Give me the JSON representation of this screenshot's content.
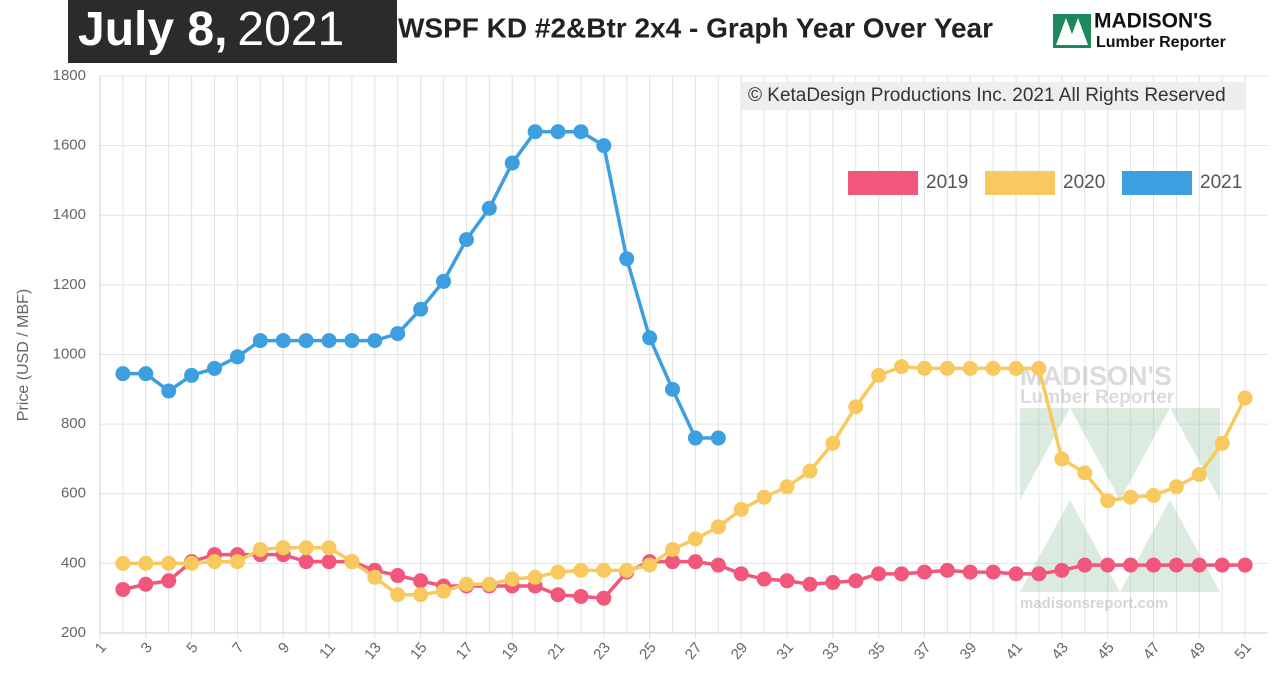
{
  "chart_data": {
    "type": "line",
    "date_label": "July 8,",
    "date_year": "2021",
    "title": "WSPF KD #2&Btr 2x4 - Graph Year Over Year",
    "logo": {
      "line1": "MADISON'S",
      "line2": "Lumber Reporter"
    },
    "copyright": "© KetaDesign Productions Inc. 2021 All Rights Reserved",
    "watermark": {
      "line1": "MADISON'S",
      "line2": "Lumber Reporter",
      "url": "madisonsreport.com"
    },
    "y_label": "Price (USD / MBF)",
    "x": [
      2,
      3,
      4,
      5,
      6,
      7,
      8,
      9,
      10,
      11,
      12,
      13,
      14,
      15,
      16,
      17,
      18,
      19,
      20,
      21,
      22,
      23,
      24,
      25,
      26,
      27,
      28,
      29,
      30,
      31,
      32,
      33,
      34,
      35,
      36,
      37,
      38,
      39,
      40,
      41,
      42,
      43,
      44,
      45,
      46,
      47,
      48,
      49,
      50,
      51
    ],
    "series": [
      {
        "name": "2019",
        "color": "#f0577b",
        "values": [
          325,
          340,
          350,
          405,
          425,
          425,
          425,
          425,
          405,
          405,
          405,
          380,
          365,
          350,
          335,
          335,
          335,
          335,
          335,
          310,
          305,
          300,
          375,
          405,
          405,
          405,
          395,
          370,
          355,
          350,
          340,
          345,
          350,
          370,
          370,
          375,
          380,
          375,
          375,
          370,
          370,
          380,
          395,
          395,
          395,
          395,
          395,
          395,
          395,
          395
        ]
      },
      {
        "name": "2020",
        "color": "#f8c95e",
        "values": [
          400,
          400,
          400,
          400,
          405,
          405,
          440,
          445,
          445,
          445,
          405,
          360,
          310,
          310,
          320,
          340,
          340,
          355,
          360,
          375,
          380,
          380,
          380,
          395,
          440,
          470,
          505,
          555,
          590,
          620,
          665,
          745,
          850,
          940,
          965,
          960,
          960,
          960,
          960,
          960,
          960,
          700,
          660,
          580,
          590,
          595,
          620,
          655,
          745,
          875
        ]
      },
      {
        "name": "2021",
        "color": "#3d9fe0",
        "values": [
          945,
          945,
          895,
          940,
          960,
          993,
          1040,
          1040,
          1040,
          1040,
          1040,
          1040,
          1060,
          1130,
          1210,
          1330,
          1420,
          1550,
          1640,
          1640,
          1640,
          1600,
          1275,
          1048,
          900,
          760,
          760,
          null,
          null,
          null,
          null,
          null,
          null,
          null,
          null,
          null,
          null,
          null,
          null,
          null,
          null,
          null,
          null,
          null,
          null,
          null,
          null,
          null,
          null,
          null
        ]
      }
    ],
    "xlim": [
      1,
      52
    ],
    "xticks": [
      1,
      3,
      5,
      7,
      9,
      11,
      13,
      15,
      17,
      19,
      21,
      23,
      25,
      27,
      29,
      31,
      33,
      35,
      37,
      39,
      41,
      43,
      45,
      47,
      49,
      51
    ],
    "ylim": [
      200,
      1800
    ],
    "yticks": [
      200,
      400,
      600,
      800,
      1000,
      1200,
      1400,
      1600,
      1800
    ],
    "grid": true,
    "legend": "top-right"
  }
}
